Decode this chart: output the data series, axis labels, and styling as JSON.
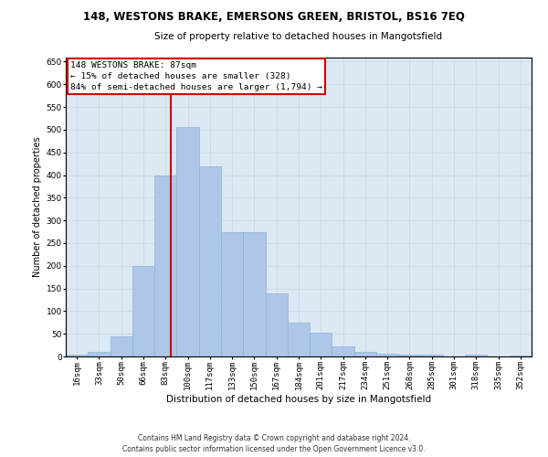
{
  "title": "148, WESTONS BRAKE, EMERSONS GREEN, BRISTOL, BS16 7EQ",
  "subtitle": "Size of property relative to detached houses in Mangotsfield",
  "xlabel": "Distribution of detached houses by size in Mangotsfield",
  "ylabel": "Number of detached properties",
  "bar_color": "#aec6e8",
  "bar_edge_color": "#8ab4d8",
  "bins": [
    "16sqm",
    "33sqm",
    "50sqm",
    "66sqm",
    "83sqm",
    "100sqm",
    "117sqm",
    "133sqm",
    "150sqm",
    "167sqm",
    "184sqm",
    "201sqm",
    "217sqm",
    "234sqm",
    "251sqm",
    "268sqm",
    "285sqm",
    "301sqm",
    "318sqm",
    "335sqm",
    "352sqm"
  ],
  "values": [
    5,
    10,
    45,
    200,
    400,
    505,
    420,
    275,
    275,
    140,
    75,
    52,
    22,
    10,
    7,
    4,
    4,
    0,
    5,
    0,
    2
  ],
  "vline_pos": 4.235,
  "annotation_text": "148 WESTONS BRAKE: 87sqm\n← 15% of detached houses are smaller (328)\n84% of semi-detached houses are larger (1,794) →",
  "ylim": [
    0,
    660
  ],
  "yticks": [
    0,
    50,
    100,
    150,
    200,
    250,
    300,
    350,
    400,
    450,
    500,
    550,
    600,
    650
  ],
  "grid_color": "#ccd8e8",
  "vline_color": "#cc0000",
  "annotation_box_facecolor": "#ffffff",
  "annotation_box_edgecolor": "#cc0000",
  "footer_line1": "Contains HM Land Registry data © Crown copyright and database right 2024.",
  "footer_line2": "Contains public sector information licensed under the Open Government Licence v3.0.",
  "background_color": "#dce8f4",
  "title_fontsize": 8.5,
  "subtitle_fontsize": 7.5,
  "xlabel_fontsize": 7.5,
  "ylabel_fontsize": 7.0,
  "tick_fontsize": 6.5,
  "annotation_fontsize": 6.8,
  "footer_fontsize": 5.5
}
